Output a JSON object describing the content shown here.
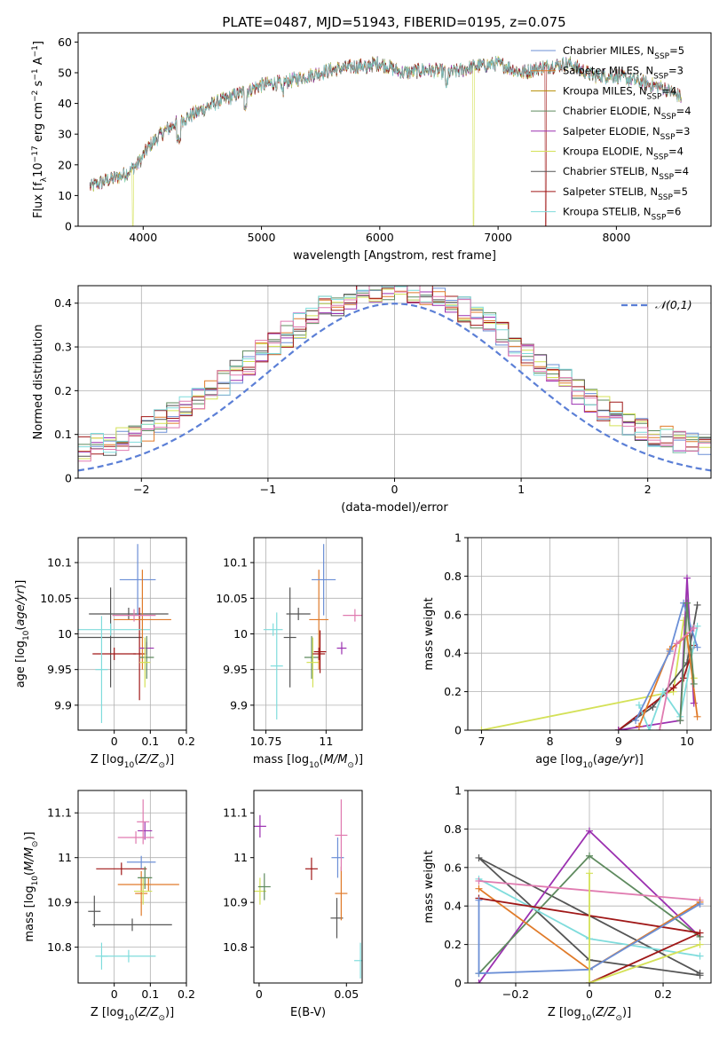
{
  "figure_title": "PLATE=0487, MJD=51943, FIBERID=0195, z=0.075",
  "colors": {
    "s0": "#6b8fd6",
    "s1": "#e07b2a",
    "s2": "#b58b00",
    "s3": "#5e8a5e",
    "s4": "#9b30b0",
    "s5": "#d4e157",
    "s6": "#555555",
    "s7": "#a01818",
    "s8": "#7fdcdc",
    "pink": "#e07bb0",
    "gauss": "#5b7fd6"
  },
  "chart_data": [
    {
      "type": "line",
      "title": "PLATE=0487, MJD=51943, FIBERID=0195, z=0.075",
      "xlabel": "wavelength [Angstrom, rest frame]",
      "ylabel": "Flux [f_λ10^-17 erg cm^-2 s^-1 A^-1]",
      "xlim": [
        3450,
        8800
      ],
      "ylim": [
        0,
        63
      ],
      "xticks": [
        4000,
        5000,
        6000,
        7000,
        8000
      ],
      "yticks": [
        0,
        10,
        20,
        30,
        40,
        50,
        60
      ],
      "legend_position": "top-right",
      "series": [
        {
          "name": "Chabrier MILES, N_SSP=5"
        },
        {
          "name": "Salpeter MILES, N_SSP=3"
        },
        {
          "name": "Kroupa MILES, N_SSP=4"
        },
        {
          "name": "Chabrier ELODIE, N_SSP=4"
        },
        {
          "name": "Salpeter ELODIE, N_SSP=3"
        },
        {
          "name": "Kroupa ELODIE, N_SSP=4"
        },
        {
          "name": "Chabrier STELIB, N_SSP=4"
        },
        {
          "name": "Salpeter STELIB, N_SSP=5"
        },
        {
          "name": "Kroupa STELIB, N_SSP=6"
        }
      ],
      "continuum": {
        "x": [
          3550,
          3700,
          3850,
          3950,
          4050,
          4150,
          4250,
          4400,
          4600,
          4800,
          5000,
          5200,
          5400,
          5600,
          5800,
          6000,
          6200,
          6400,
          6600,
          6800,
          7000,
          7200,
          7400,
          7600,
          7800,
          8000,
          8200,
          8400,
          8550
        ],
        "y": [
          13,
          15,
          17,
          20,
          26,
          30,
          33,
          36,
          40,
          43,
          46,
          47,
          49,
          51,
          52,
          53,
          50,
          51,
          50,
          52,
          53,
          50,
          52,
          53,
          49,
          49,
          47,
          45,
          42
        ]
      }
    },
    {
      "type": "histogram",
      "xlabel": "(data-model)/error",
      "ylabel": "Normed distribution",
      "xlim": [
        -2.5,
        2.5
      ],
      "ylim": [
        0,
        0.44
      ],
      "xticks": [
        -2,
        -1,
        0,
        1,
        2
      ],
      "yticks": [
        0.0,
        0.1,
        0.2,
        0.3,
        0.4
      ],
      "grid": true,
      "legend_position": "top-right",
      "reference_curve": {
        "name": "𝒩(0,1)",
        "style": "dashed"
      },
      "bin_width": 0.1
    },
    {
      "type": "scatter",
      "xlabel": "Z [log10(Z/Z⊙)]",
      "ylabel": "age  [log10(age/yr)]",
      "xlim": [
        -0.1,
        0.2
      ],
      "ylim": [
        9.865,
        10.135
      ],
      "xticks": [
        0.0,
        0.1,
        0.2
      ],
      "yticks": [
        9.9,
        9.95,
        10.0,
        10.05,
        10.1
      ],
      "grid": true,
      "points": [
        {
          "c": "s6",
          "x": -0.01,
          "xe": 0.09,
          "y": 9.995,
          "ye": 0.07
        },
        {
          "c": "s6",
          "x": 0.04,
          "xe": 0.11,
          "y": 10.028,
          "ye": 0.0
        },
        {
          "c": "s7",
          "x": 0.0,
          "xe": 0.06,
          "y": 9.972,
          "ye": 0.0
        },
        {
          "c": "s7",
          "x": 0.07,
          "xe": 0.0,
          "y": 9.972,
          "ye": 0.065
        },
        {
          "c": "s8",
          "x": -0.01,
          "xe": 0.11,
          "y": 10.006,
          "ye": 0.0
        },
        {
          "c": "s8",
          "x": -0.035,
          "xe": 0.0,
          "y": 9.95,
          "ye": 0.075
        },
        {
          "c": "s0",
          "x": 0.065,
          "xe": 0.05,
          "y": 10.076,
          "ye": 0.05
        },
        {
          "c": "s1",
          "x": 0.078,
          "xe": 0.08,
          "y": 10.02,
          "ye": 0.07
        },
        {
          "c": "pink",
          "x": 0.055,
          "xe": 0.06,
          "y": 10.026,
          "ye": 0.0
        },
        {
          "c": "s4",
          "x": 0.09,
          "xe": 0.02,
          "y": 9.98,
          "ye": 0.0
        },
        {
          "c": "s3",
          "x": 0.09,
          "xe": 0.02,
          "y": 9.967,
          "ye": 0.03
        },
        {
          "c": "s5",
          "x": 0.085,
          "xe": 0.015,
          "y": 9.96,
          "ye": 0.035
        }
      ]
    },
    {
      "type": "scatter",
      "xlabel": "mass [log10(M/M⊙)]",
      "ylabel": "",
      "xlim": [
        10.7,
        11.15
      ],
      "ylim": [
        9.865,
        10.135
      ],
      "xticks": [
        10.75,
        11.0
      ],
      "yticks": [
        9.9,
        9.95,
        10.0,
        10.05,
        10.1
      ],
      "grid": true,
      "points": [
        {
          "c": "s6",
          "x": 10.85,
          "xe": 0.0,
          "y": 9.995,
          "ye": 0.07
        },
        {
          "c": "s6",
          "x": 10.885,
          "xe": 0.05,
          "y": 10.028,
          "ye": 0.0
        },
        {
          "c": "s8",
          "x": 10.78,
          "xe": 0.04,
          "y": 10.006,
          "ye": 0.0
        },
        {
          "c": "s8",
          "x": 10.795,
          "xe": 0.0,
          "y": 9.955,
          "ye": 0.075
        },
        {
          "c": "s3",
          "x": 10.94,
          "xe": 0.03,
          "y": 9.967,
          "ye": 0.03
        },
        {
          "c": "s5",
          "x": 10.945,
          "xe": 0.0,
          "y": 9.96,
          "ye": 0.035
        },
        {
          "c": "s1",
          "x": 10.97,
          "xe": 0.04,
          "y": 10.02,
          "ye": 0.07
        },
        {
          "c": "s7",
          "x": 10.97,
          "xe": 0.0,
          "y": 9.972,
          "ye": 0.0
        },
        {
          "c": "s7",
          "x": 10.975,
          "xe": 0.0,
          "y": 9.975,
          "ye": 0.03
        },
        {
          "c": "s0",
          "x": 10.99,
          "xe": 0.05,
          "y": 10.076,
          "ye": 0.05
        },
        {
          "c": "pink",
          "x": 11.12,
          "xe": 0.05,
          "y": 10.026,
          "ye": 0.0
        },
        {
          "c": "s4",
          "x": 11.065,
          "xe": 0.02,
          "y": 9.98,
          "ye": 0.0
        }
      ]
    },
    {
      "type": "line",
      "xlabel": "age  [log10(age/yr)]",
      "ylabel": "mass weight",
      "xlim": [
        6.8,
        10.35
      ],
      "ylim": [
        0,
        1
      ],
      "xticks": [
        7,
        8,
        9,
        10
      ],
      "yticks": [
        0.0,
        0.2,
        0.4,
        0.6,
        0.8,
        1.0
      ],
      "grid": true,
      "series": [
        {
          "c": "s5",
          "x": [
            7.0,
            9.8,
            9.95,
            10.1
          ],
          "y": [
            0.0,
            0.2,
            0.57,
            0.27
          ]
        },
        {
          "c": "s6",
          "x": [
            9.0,
            9.5,
            10.0,
            10.15
          ],
          "y": [
            0.0,
            0.12,
            0.35,
            0.65
          ]
        },
        {
          "c": "s7",
          "x": [
            9.0,
            9.8,
            9.95,
            10.1
          ],
          "y": [
            0.0,
            0.22,
            0.27,
            0.44
          ]
        },
        {
          "c": "s4",
          "x": [
            9.0,
            9.9,
            10.0,
            10.1
          ],
          "y": [
            0.0,
            0.05,
            0.79,
            0.14
          ]
        },
        {
          "c": "s8",
          "x": [
            9.3,
            9.45,
            9.65,
            9.9,
            10.15
          ],
          "y": [
            0.13,
            0.0,
            0.2,
            0.07,
            0.54
          ]
        },
        {
          "c": "s1",
          "x": [
            9.3,
            9.75,
            10.0,
            10.15
          ],
          "y": [
            0.02,
            0.42,
            0.49,
            0.07
          ]
        },
        {
          "c": "s0",
          "x": [
            9.25,
            9.75,
            9.95,
            10.15
          ],
          "y": [
            0.05,
            0.41,
            0.66,
            0.43
          ]
        },
        {
          "c": "s3",
          "x": [
            9.9,
            10.0,
            10.1
          ],
          "y": [
            0.05,
            0.66,
            0.24
          ]
        },
        {
          "c": "pink",
          "x": [
            9.6,
            9.85,
            10.1
          ],
          "y": [
            0.0,
            0.45,
            0.53
          ]
        }
      ]
    },
    {
      "type": "scatter",
      "xlabel": "Z [log10(Z/Z⊙)]",
      "ylabel": "mass [log10(M/M⊙)]",
      "xlim": [
        -0.1,
        0.2
      ],
      "ylim": [
        10.72,
        11.15
      ],
      "xticks": [
        0.0,
        0.1,
        0.2
      ],
      "yticks": [
        10.8,
        10.9,
        11.0,
        11.1
      ],
      "grid": true,
      "points": [
        {
          "c": "s6",
          "x": 0.05,
          "xe": 0.11,
          "y": 10.85,
          "ye": 0.0
        },
        {
          "c": "s6",
          "x": -0.055,
          "xe": 0.0,
          "y": 10.88,
          "ye": 0.035
        },
        {
          "c": "s8",
          "x": 0.04,
          "xe": 0.075,
          "y": 10.78,
          "ye": 0.0
        },
        {
          "c": "s8",
          "x": -0.035,
          "xe": 0.0,
          "y": 10.78,
          "ye": 0.03
        },
        {
          "c": "s7",
          "x": 0.02,
          "xe": 0.07,
          "y": 10.975,
          "ye": 0.0
        },
        {
          "c": "s1",
          "x": 0.095,
          "xe": 0.085,
          "y": 10.94,
          "ye": 0.0
        },
        {
          "c": "s1",
          "x": 0.075,
          "xe": 0.0,
          "y": 10.92,
          "ye": 0.05
        },
        {
          "c": "s0",
          "x": 0.075,
          "xe": 0.04,
          "y": 10.99,
          "ye": 0.0
        },
        {
          "c": "s5",
          "x": 0.08,
          "xe": 0.025,
          "y": 10.925,
          "ye": 0.03
        },
        {
          "c": "s3",
          "x": 0.085,
          "xe": 0.02,
          "y": 10.955,
          "ye": 0.025
        },
        {
          "c": "s4",
          "x": 0.085,
          "xe": 0.02,
          "y": 11.06,
          "ye": 0.02
        },
        {
          "c": "pink",
          "x": 0.06,
          "xe": 0.05,
          "y": 11.045,
          "ye": 0.0
        },
        {
          "c": "pink",
          "x": 0.08,
          "xe": 0.0,
          "y": 11.08,
          "ye": 0.05
        }
      ]
    },
    {
      "type": "scatter",
      "xlabel": "E(B-V)",
      "ylabel": "",
      "xlim": [
        -0.003,
        0.059
      ],
      "ylim": [
        10.72,
        11.15
      ],
      "xticks": [
        0.0,
        0.05
      ],
      "yticks": [
        10.8,
        10.9,
        11.0,
        11.1
      ],
      "grid": false,
      "points": [
        {
          "c": "s4",
          "x": 0.0005,
          "xe": 0.0,
          "y": 11.07,
          "ye": 0.025
        },
        {
          "c": "s5",
          "x": 0.0005,
          "xe": 0.0,
          "y": 10.925,
          "ye": 0.03
        },
        {
          "c": "s3",
          "x": 0.003,
          "xe": 0.0,
          "y": 10.935,
          "ye": 0.03
        },
        {
          "c": "s7",
          "x": 0.03,
          "xe": 0.0,
          "y": 10.975,
          "ye": 0.025
        },
        {
          "c": "s0",
          "x": 0.045,
          "xe": 0.0,
          "y": 11.0,
          "ye": 0.045
        },
        {
          "c": "s6",
          "x": 0.0445,
          "xe": 0.0,
          "y": 10.865,
          "ye": 0.045
        },
        {
          "c": "s1",
          "x": 0.047,
          "xe": 0.0,
          "y": 10.92,
          "ye": 0.06
        },
        {
          "c": "pink",
          "x": 0.047,
          "xe": 0.0,
          "y": 11.05,
          "ye": 0.08
        },
        {
          "c": "s8",
          "x": 0.058,
          "xe": 0.0,
          "y": 10.77,
          "ye": 0.04
        }
      ]
    },
    {
      "type": "line",
      "xlabel": "Z [log10(Z/Z⊙)]",
      "ylabel": "mass weight",
      "xlim": [
        -0.33,
        0.33
      ],
      "ylim": [
        0,
        1
      ],
      "xticks": [
        -0.2,
        0.0,
        0.2
      ],
      "yticks": [
        0.0,
        0.2,
        0.4,
        0.6,
        0.8,
        1.0
      ],
      "grid": true,
      "series": [
        {
          "c": "s6",
          "x": [
            0.3,
            -0.3,
            0.0,
            0.3
          ],
          "y": [
            0.05,
            0.65,
            0.12,
            0.04
          ]
        },
        {
          "c": "s4",
          "x": [
            -0.3,
            0.0,
            0.3
          ],
          "y": [
            0.0,
            0.79,
            0.24
          ]
        },
        {
          "c": "s3",
          "x": [
            -0.3,
            0.0,
            0.3
          ],
          "y": [
            0.05,
            0.66,
            0.24
          ]
        },
        {
          "c": "s8",
          "x": [
            -0.3,
            0.0,
            0.3
          ],
          "y": [
            0.54,
            0.23,
            0.14
          ]
        },
        {
          "c": "pink",
          "x": [
            -0.3,
            0.3
          ],
          "y": [
            0.53,
            0.43
          ]
        },
        {
          "c": "s1",
          "x": [
            -0.3,
            0.0,
            0.3
          ],
          "y": [
            0.49,
            0.07,
            0.42
          ]
        },
        {
          "c": "s7",
          "x": [
            -0.3,
            0.3,
            0.0
          ],
          "y": [
            0.44,
            0.26,
            0.0
          ]
        },
        {
          "c": "s0",
          "x": [
            -0.3,
            -0.3,
            0.0,
            0.3
          ],
          "y": [
            0.43,
            0.05,
            0.07,
            0.41
          ]
        },
        {
          "c": "s5",
          "x": [
            0.0,
            0.0,
            0.3
          ],
          "y": [
            0.57,
            0.0,
            0.2
          ]
        }
      ]
    }
  ]
}
